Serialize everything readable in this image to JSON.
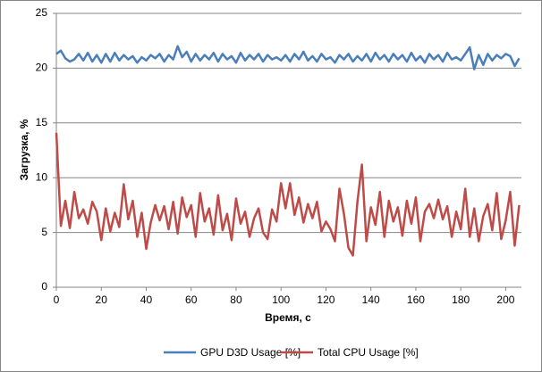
{
  "chart_data": {
    "type": "line",
    "xlabel": "Время, с",
    "ylabel": "Загрузка, %",
    "x": [
      0,
      2,
      4,
      6,
      8,
      10,
      12,
      14,
      16,
      18,
      20,
      22,
      24,
      26,
      28,
      30,
      32,
      34,
      36,
      38,
      40,
      42,
      44,
      46,
      48,
      50,
      52,
      54,
      56,
      58,
      60,
      62,
      64,
      66,
      68,
      70,
      72,
      74,
      76,
      78,
      80,
      82,
      84,
      86,
      88,
      90,
      92,
      94,
      96,
      98,
      100,
      102,
      104,
      106,
      108,
      110,
      112,
      114,
      116,
      118,
      120,
      122,
      124,
      126,
      128,
      130,
      132,
      134,
      136,
      138,
      140,
      142,
      144,
      146,
      148,
      150,
      152,
      154,
      156,
      158,
      160,
      162,
      164,
      166,
      168,
      170,
      172,
      174,
      176,
      178,
      180,
      182,
      184,
      186,
      188,
      190,
      192,
      194,
      196,
      198,
      200,
      202,
      204,
      206
    ],
    "series": [
      {
        "name": "GPU D3D Usage [%]",
        "color": "#4a7ebb",
        "values": [
          21.3,
          21.6,
          20.9,
          20.6,
          20.8,
          21.3,
          20.7,
          21.4,
          20.6,
          21.2,
          20.5,
          21.3,
          20.6,
          21.4,
          20.7,
          21.2,
          20.8,
          21.1,
          20.5,
          21.0,
          20.7,
          21.2,
          20.9,
          21.3,
          20.6,
          21.2,
          20.8,
          22.0,
          21.0,
          21.5,
          20.6,
          21.3,
          20.7,
          21.2,
          20.8,
          21.4,
          20.6,
          21.3,
          20.8,
          21.1,
          20.5,
          21.4,
          20.7,
          21.2,
          20.8,
          21.3,
          20.6,
          21.2,
          20.8,
          21.0,
          20.7,
          21.2,
          20.6,
          21.3,
          20.8,
          21.5,
          20.7,
          21.1,
          20.6,
          21.3,
          20.8,
          21.0,
          20.5,
          21.2,
          20.8,
          21.3,
          20.6,
          21.1,
          20.7,
          21.3,
          20.6,
          21.4,
          20.8,
          21.2,
          20.6,
          21.3,
          20.8,
          21.2,
          20.6,
          21.4,
          20.7,
          21.1,
          20.5,
          21.3,
          20.8,
          21.2,
          20.6,
          21.4,
          20.8,
          21.0,
          20.7,
          21.3,
          21.9,
          19.9,
          21.2,
          20.3,
          21.3,
          20.7,
          21.2,
          20.9,
          21.3,
          21.1,
          20.2,
          20.9
        ]
      },
      {
        "name": "Total CPU Usage [%]",
        "color": "#be4b48",
        "values": [
          14.1,
          5.6,
          7.9,
          5.4,
          8.7,
          6.3,
          7.1,
          5.8,
          7.8,
          6.9,
          4.3,
          7.2,
          5.1,
          6.8,
          5.5,
          9.4,
          6.2,
          7.9,
          4.6,
          6.8,
          3.5,
          5.9,
          7.5,
          6.1,
          7.4,
          5.3,
          7.8,
          4.9,
          8.2,
          6.4,
          7.5,
          4.6,
          8.6,
          6.0,
          7.2,
          4.8,
          8.4,
          5.2,
          6.7,
          4.3,
          8.1,
          5.8,
          6.9,
          4.6,
          6.3,
          7.2,
          5.0,
          4.4,
          7.1,
          6.0,
          9.5,
          7.2,
          9.5,
          6.6,
          8.2,
          5.9,
          7.6,
          6.3,
          7.8,
          5.1,
          6.0,
          5.3,
          4.2,
          9.0,
          6.7,
          3.6,
          2.9,
          7.8,
          11.2,
          4.2,
          7.3,
          5.7,
          8.7,
          4.6,
          7.9,
          6.0,
          7.3,
          4.7,
          7.9,
          5.8,
          8.2,
          4.2,
          6.9,
          7.6,
          6.3,
          8.0,
          6.2,
          7.4,
          4.6,
          6.9,
          5.3,
          9.0,
          4.6,
          7.2,
          4.2,
          6.5,
          7.6,
          5.2,
          8.6,
          4.4,
          6.1,
          8.7,
          3.8,
          7.5
        ]
      }
    ],
    "xlim": [
      0,
      207
    ],
    "xticks": [
      0,
      20,
      40,
      60,
      80,
      100,
      120,
      140,
      160,
      180,
      200
    ],
    "ylim": [
      0,
      25
    ],
    "yticks": [
      0,
      5,
      10,
      15,
      20,
      25
    ],
    "grid": true,
    "legend": "bottom"
  }
}
